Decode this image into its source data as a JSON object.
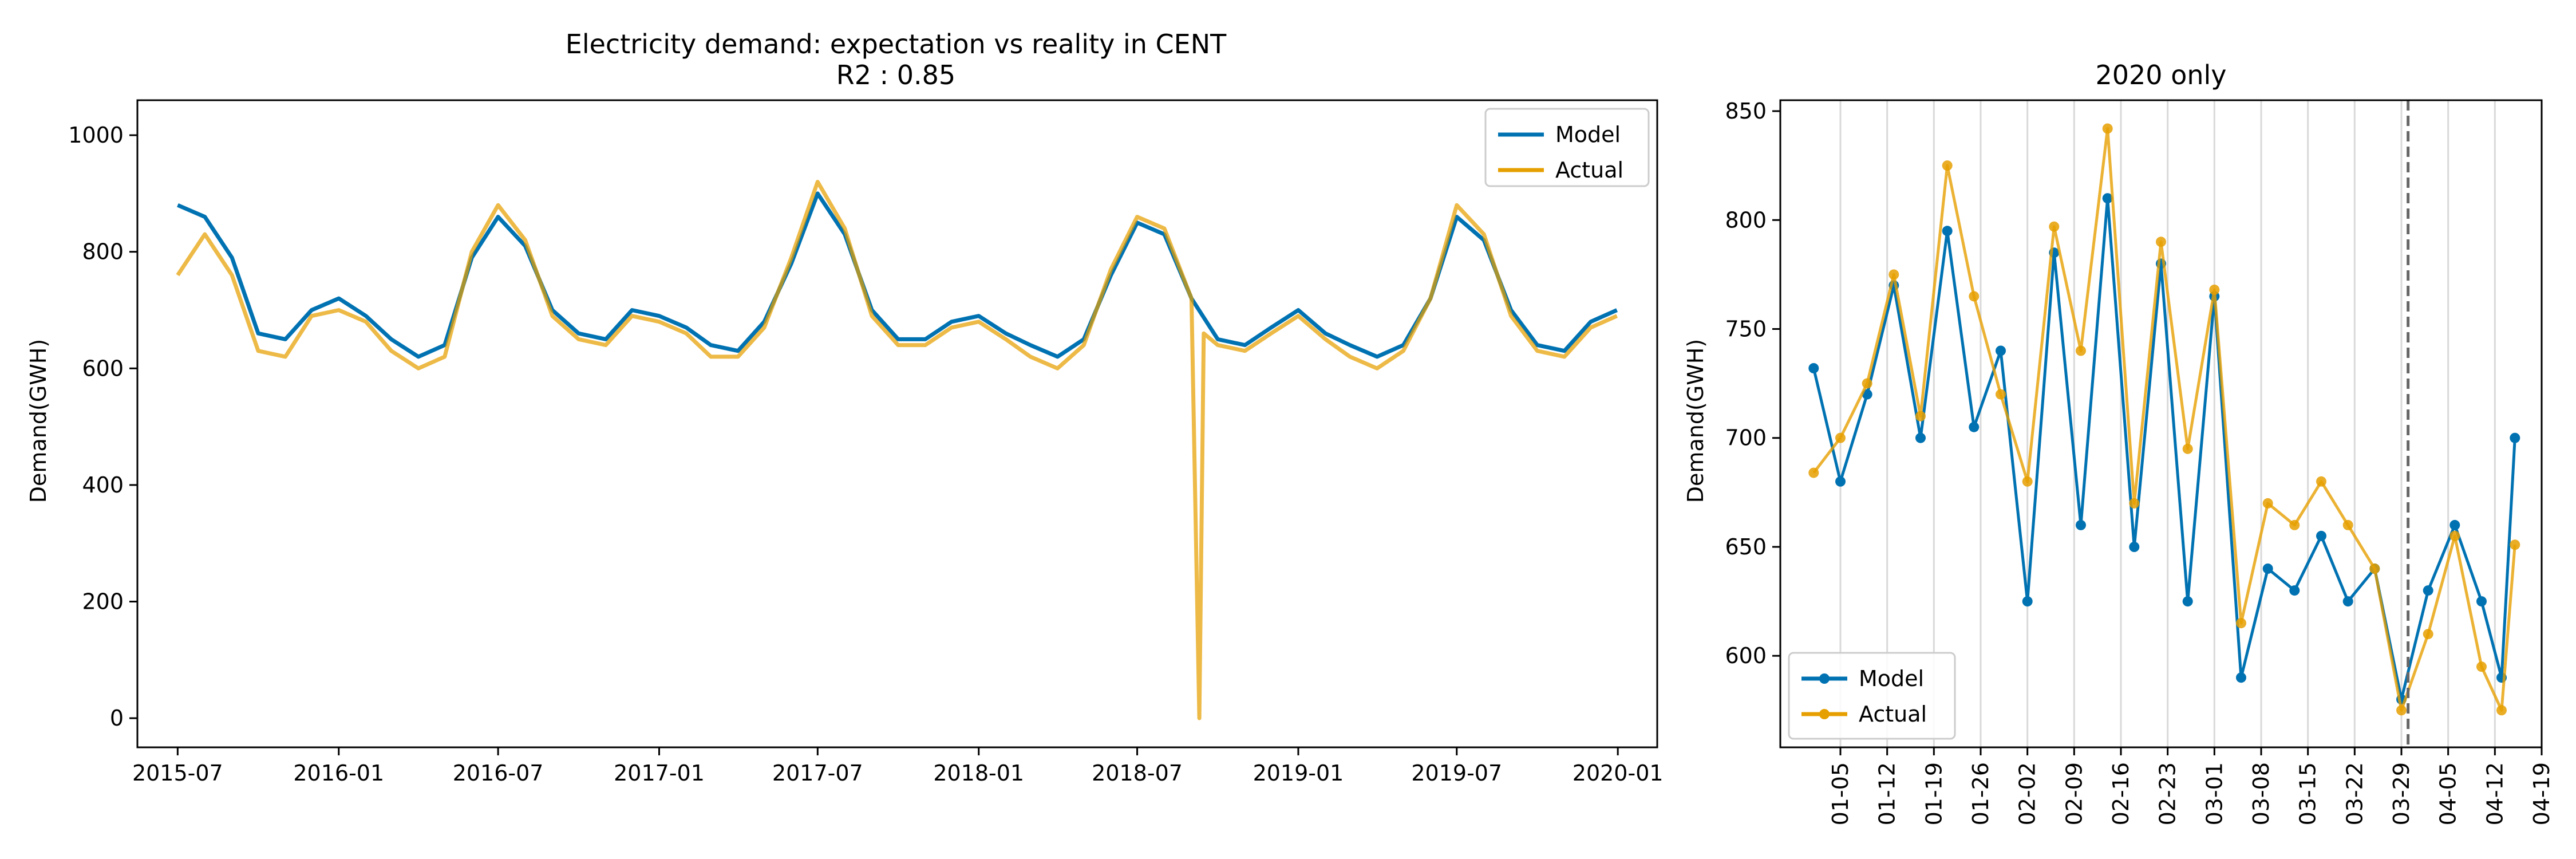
{
  "colors": {
    "model": "#0072B2",
    "actual": "#E69F00",
    "grid": "#d9d9d9",
    "dashed": "#666666"
  },
  "chart_data": [
    {
      "type": "line",
      "title": "Electricity demand: expectation vs reality in CENT",
      "subtitle": "R2 : 0.85",
      "xlabel": "",
      "ylabel": "Demand(GWH)",
      "xlim": [
        "2015-05-16",
        "2020-02-15"
      ],
      "ylim": [
        -50,
        1060
      ],
      "xticks": [
        "2015-07",
        "2016-01",
        "2016-07",
        "2017-01",
        "2017-07",
        "2018-01",
        "2018-07",
        "2019-01",
        "2019-07",
        "2020-01"
      ],
      "yticks": [
        0,
        200,
        400,
        600,
        800,
        1000
      ],
      "legend": "top-right",
      "grid": false,
      "series": [
        {
          "name": "Model",
          "x": [
            "2015-07-01",
            "2015-08-01",
            "2015-09-01",
            "2015-10-01",
            "2015-11-01",
            "2015-12-01",
            "2016-01-01",
            "2016-02-01",
            "2016-03-01",
            "2016-04-01",
            "2016-05-01",
            "2016-06-01",
            "2016-07-01",
            "2016-08-01",
            "2016-09-01",
            "2016-10-01",
            "2016-11-01",
            "2016-12-01",
            "2017-01-01",
            "2017-02-01",
            "2017-03-01",
            "2017-04-01",
            "2017-05-01",
            "2017-06-01",
            "2017-07-01",
            "2017-08-01",
            "2017-09-01",
            "2017-10-01",
            "2017-11-01",
            "2017-12-01",
            "2018-01-01",
            "2018-02-01",
            "2018-03-01",
            "2018-04-01",
            "2018-05-01",
            "2018-06-01",
            "2018-07-01",
            "2018-08-01",
            "2018-09-01",
            "2018-10-01",
            "2018-11-01",
            "2018-12-01",
            "2019-01-01",
            "2019-02-01",
            "2019-03-01",
            "2019-04-01",
            "2019-05-01",
            "2019-06-01",
            "2019-07-01",
            "2019-08-01",
            "2019-09-01",
            "2019-10-01",
            "2019-11-01",
            "2019-12-01",
            "2019-12-31"
          ],
          "values": [
            880,
            860,
            790,
            660,
            650,
            700,
            720,
            690,
            650,
            620,
            640,
            790,
            860,
            810,
            700,
            660,
            650,
            700,
            690,
            670,
            640,
            630,
            680,
            780,
            900,
            830,
            700,
            650,
            650,
            680,
            690,
            660,
            640,
            620,
            650,
            760,
            850,
            830,
            720,
            650,
            640,
            670,
            700,
            660,
            640,
            620,
            640,
            720,
            860,
            820,
            700,
            640,
            630,
            680,
            700
          ]
        },
        {
          "name": "Actual",
          "x": [
            "2015-07-01",
            "2015-08-01",
            "2015-09-01",
            "2015-10-01",
            "2015-11-01",
            "2015-12-01",
            "2016-01-01",
            "2016-02-01",
            "2016-03-01",
            "2016-04-01",
            "2016-05-01",
            "2016-06-01",
            "2016-07-01",
            "2016-08-01",
            "2016-09-01",
            "2016-10-01",
            "2016-11-01",
            "2016-12-01",
            "2017-01-01",
            "2017-02-01",
            "2017-03-01",
            "2017-04-01",
            "2017-05-01",
            "2017-06-01",
            "2017-07-01",
            "2017-08-01",
            "2017-09-01",
            "2017-10-01",
            "2017-11-01",
            "2017-12-01",
            "2018-01-01",
            "2018-02-01",
            "2018-03-01",
            "2018-04-01",
            "2018-05-01",
            "2018-06-01",
            "2018-07-01",
            "2018-08-01",
            "2018-09-01",
            "2018-09-10",
            "2018-09-15",
            "2018-10-01",
            "2018-11-01",
            "2018-12-01",
            "2019-01-01",
            "2019-02-01",
            "2019-03-01",
            "2019-04-01",
            "2019-05-01",
            "2019-06-01",
            "2019-07-01",
            "2019-08-01",
            "2019-09-01",
            "2019-10-01",
            "2019-11-01",
            "2019-12-01",
            "2019-12-31"
          ],
          "values": [
            760,
            830,
            760,
            630,
            620,
            690,
            700,
            680,
            630,
            600,
            620,
            800,
            880,
            820,
            690,
            650,
            640,
            690,
            680,
            660,
            620,
            620,
            670,
            790,
            920,
            840,
            690,
            640,
            640,
            670,
            680,
            650,
            620,
            600,
            640,
            770,
            860,
            840,
            720,
            0,
            660,
            640,
            630,
            660,
            690,
            650,
            620,
            600,
            630,
            720,
            880,
            830,
            690,
            630,
            620,
            670,
            690
          ]
        }
      ]
    },
    {
      "type": "line",
      "title": "2020 only",
      "xlabel": "",
      "ylabel": "Demand(GWH)",
      "xlim": [
        "2019-12-27",
        "2020-04-19"
      ],
      "ylim": [
        558,
        855
      ],
      "xticks": [
        "01-05",
        "01-12",
        "01-19",
        "01-26",
        "02-02",
        "02-09",
        "02-16",
        "02-23",
        "03-01",
        "03-08",
        "03-15",
        "03-22",
        "03-29",
        "04-05",
        "04-12",
        "04-19"
      ],
      "yticks": [
        600,
        650,
        700,
        750,
        800,
        850
      ],
      "vline": "2020-03-30",
      "legend": "bottom-left",
      "grid": true,
      "series": [
        {
          "name": "Model",
          "x": [
            "2020-01-01",
            "2020-01-05",
            "2020-01-09",
            "2020-01-13",
            "2020-01-17",
            "2020-01-21",
            "2020-01-25",
            "2020-01-29",
            "2020-02-02",
            "2020-02-06",
            "2020-02-10",
            "2020-02-14",
            "2020-02-18",
            "2020-02-22",
            "2020-02-26",
            "2020-03-01",
            "2020-03-05",
            "2020-03-09",
            "2020-03-13",
            "2020-03-17",
            "2020-03-21",
            "2020-03-25",
            "2020-03-29",
            "2020-04-02",
            "2020-04-06",
            "2020-04-10",
            "2020-04-13",
            "2020-04-15"
          ],
          "values": [
            732,
            680,
            720,
            770,
            700,
            795,
            705,
            740,
            625,
            785,
            660,
            810,
            650,
            780,
            625,
            765,
            590,
            640,
            630,
            655,
            625,
            640,
            580,
            630,
            660,
            625,
            590,
            700
          ]
        },
        {
          "name": "Actual",
          "x": [
            "2020-01-01",
            "2020-01-05",
            "2020-01-09",
            "2020-01-13",
            "2020-01-17",
            "2020-01-21",
            "2020-01-25",
            "2020-01-29",
            "2020-02-02",
            "2020-02-06",
            "2020-02-10",
            "2020-02-14",
            "2020-02-18",
            "2020-02-22",
            "2020-02-26",
            "2020-03-01",
            "2020-03-05",
            "2020-03-09",
            "2020-03-13",
            "2020-03-17",
            "2020-03-21",
            "2020-03-25",
            "2020-03-29",
            "2020-04-02",
            "2020-04-06",
            "2020-04-10",
            "2020-04-13",
            "2020-04-15"
          ],
          "values": [
            684,
            700,
            725,
            775,
            710,
            825,
            765,
            720,
            680,
            797,
            740,
            842,
            670,
            790,
            695,
            768,
            615,
            670,
            660,
            680,
            660,
            640,
            575,
            610,
            655,
            595,
            575,
            651
          ]
        }
      ]
    }
  ]
}
